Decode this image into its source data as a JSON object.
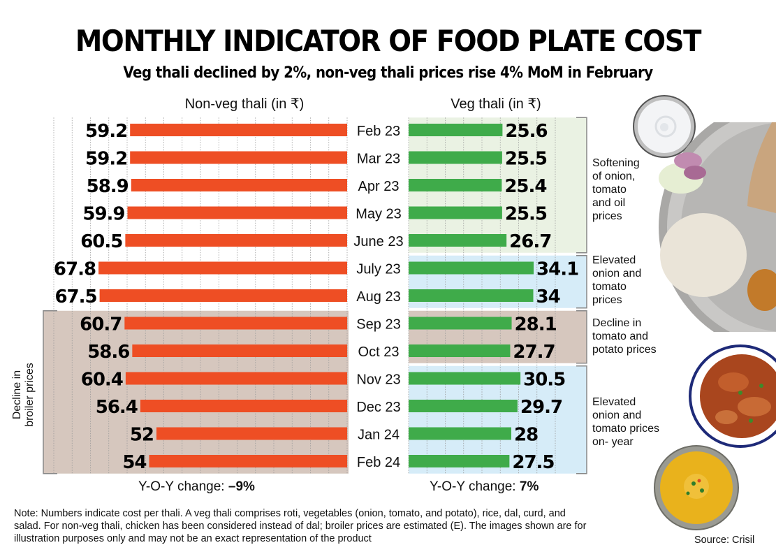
{
  "header": {
    "title": "MONTHLY INDICATOR OF FOOD PLATE COST",
    "subtitle": "Veg thali declined by 2%, non-veg thali prices rise 4% MoM in February"
  },
  "chart_data": {
    "type": "bar",
    "orientation": "horizontal-butterfly",
    "title": "MONTHLY INDICATOR OF FOOD PLATE COST",
    "subtitle": "Veg thali declined by 2%, non-veg thali prices rise 4% MoM in February",
    "categories": [
      "Feb 23",
      "Mar 23",
      "Apr 23",
      "May 23",
      "June 23",
      "July 23",
      "Aug 23",
      "Sep 23",
      "Oct 23",
      "Nov 23",
      "Dec 23",
      "Jan 24",
      "Feb 24"
    ],
    "series": [
      {
        "name": "Non-veg thali (in ₹)",
        "color": "#ee4e24",
        "values": [
          59.2,
          59.2,
          58.9,
          59.9,
          60.5,
          67.8,
          67.5,
          60.7,
          58.6,
          60.4,
          56.4,
          52,
          54
        ]
      },
      {
        "name": "Veg thali (in ₹)",
        "color": "#3fab4a",
        "values": [
          25.6,
          25.5,
          25.4,
          25.5,
          26.7,
          34.1,
          34,
          28.1,
          27.7,
          30.5,
          29.7,
          28,
          27.5
        ]
      }
    ],
    "xlabel": "",
    "ylabel": "",
    "grid": "vertical dotted",
    "legend": "column headers above each side",
    "bands": [
      {
        "side": "Non-veg thali (in ₹)",
        "from": "Sep 23",
        "to": "Feb 24",
        "color": "#d6c7be",
        "label": "Decline in broiler prices"
      },
      {
        "side": "Veg thali (in ₹)",
        "from": "Feb 23",
        "to": "June 23",
        "color": "#eaf2e3",
        "label": "Softening of onion, tomato and oil prices"
      },
      {
        "side": "Veg thali (in ₹)",
        "from": "July 23",
        "to": "Aug 23",
        "color": "#d6ecf8",
        "label": "Elevated onion and tomato prices"
      },
      {
        "side": "Veg thali (in ₹)",
        "from": "Sep 23",
        "to": "Oct 23",
        "color": "#d6c7be",
        "label": "Decline in tomato and potato prices"
      },
      {
        "side": "Veg thali (in ₹)",
        "from": "Nov 23",
        "to": "Feb 24",
        "color": "#d6ecf8",
        "label": "Elevated onion and tomato prices on- year"
      }
    ],
    "yoy": {
      "non_veg": "–9%",
      "veg": "7%"
    }
  },
  "columns": {
    "non_veg_header": "Non-veg thali (in ₹)",
    "veg_header": "Veg thali (in ₹)"
  },
  "annotations": {
    "veg_1": "Softening\nof onion,\ntomato\nand oil\nprices",
    "veg_2": "Elevated\nonion and\ntomato\nprices",
    "veg_3": "Decline in\ntomato and\npotato prices",
    "veg_4": "Elevated\nonion and\ntomato prices\non- year",
    "non_veg": "Decline in\nbroiler prices"
  },
  "yoy": {
    "label": "Y-O-Y change: ",
    "non_veg_value": "–9%",
    "veg_value": "7%"
  },
  "footer": {
    "note": "Note: Numbers indicate cost per thali. A veg thali comprises roti, vegetables (onion, tomato, and potato), rice, dal, curd, and salad. For non-veg thali, chicken has been considered instead of dal; broiler prices are estimated (E). The images shown are for illustration purposes only and may not be an exact representation of the product",
    "source": "Source: Crisil"
  },
  "images": [
    {
      "name": "curd-bowl",
      "alt": "bowl of curd"
    },
    {
      "name": "thali-plate",
      "alt": "steel plate with roti, onion, cucumber, rice and potato sabzi"
    },
    {
      "name": "chicken-curry-bowl",
      "alt": "bowl of chicken curry"
    },
    {
      "name": "dal-bowl",
      "alt": "bowl of dal"
    }
  ]
}
